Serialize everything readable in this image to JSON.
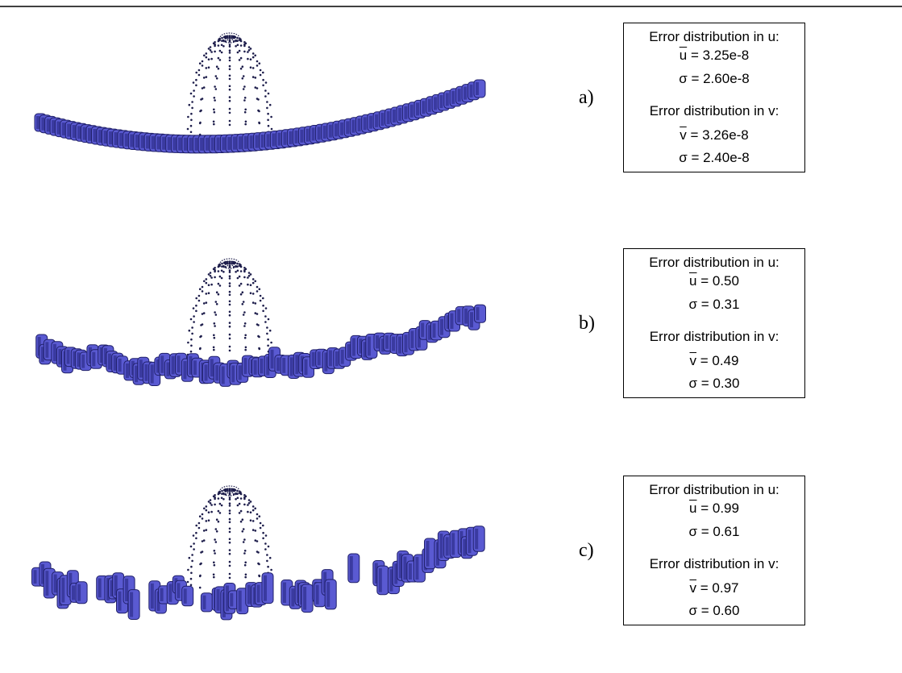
{
  "figure": {
    "panels": [
      {
        "label": "a)",
        "u_heading": "Error distribution in u:",
        "u_mean": {
          "symbol": "u",
          "value": "= 3.25e-8"
        },
        "u_sigma": "σ = 2.60e-8",
        "v_heading": "Error distribution in v:",
        "v_mean": {
          "symbol": "v",
          "value": "= 3.26e-8"
        },
        "v_sigma": "σ = 2.40e-8"
      },
      {
        "label": "b)",
        "u_heading": "Error distribution in u:",
        "u_mean": {
          "symbol": "u",
          "value": "= 0.50"
        },
        "u_sigma": "σ = 0.31",
        "v_heading": "Error distribution in v:",
        "v_mean": {
          "symbol": "v",
          "value": "= 0.49"
        },
        "v_sigma": "σ = 0.30"
      },
      {
        "label": "c)",
        "u_heading": "Error distribution in u:",
        "u_mean": {
          "symbol": "u",
          "value": "= 0.99"
        },
        "u_sigma": "σ = 0.61",
        "v_heading": "Error distribution in v:",
        "v_mean": {
          "symbol": "v",
          "value": "= 0.97"
        },
        "v_sigma": "σ = 0.60"
      }
    ]
  }
}
